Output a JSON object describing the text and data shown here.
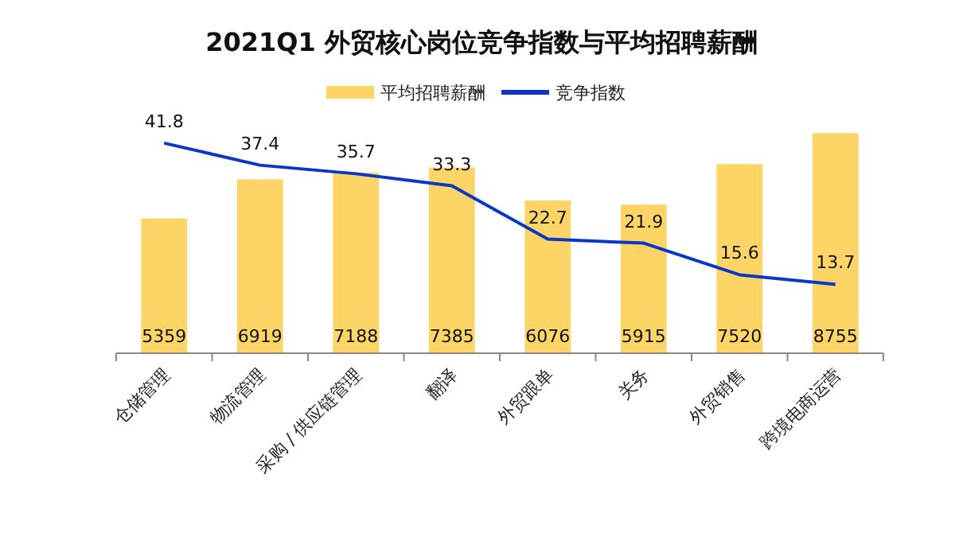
{
  "chart_data": {
    "type": "bar",
    "title": "2021Q1 外贸核心岗位竞争指数与平均招聘薪酬",
    "categories": [
      "仓储管理",
      "物流管理",
      "采购 / 供应链管理",
      "翻译",
      "外贸跟单",
      "关务",
      "外贸销售",
      "跨境电商运营"
    ],
    "series": [
      {
        "name": "平均招聘薪酬",
        "color": "#fdd466",
        "values": [
          5359,
          6919,
          7188,
          7385,
          6076,
          5915,
          7520,
          8755
        ]
      },
      {
        "name": "竞争指数",
        "type": "line",
        "axis": "y2",
        "color": "#0a37c8",
        "values": [
          41.8,
          37.4,
          35.7,
          33.3,
          22.7,
          21.9,
          15.6,
          13.7
        ]
      }
    ],
    "data_labels": true,
    "legend": "top",
    "marker": "none",
    "line_style": "solid"
  }
}
